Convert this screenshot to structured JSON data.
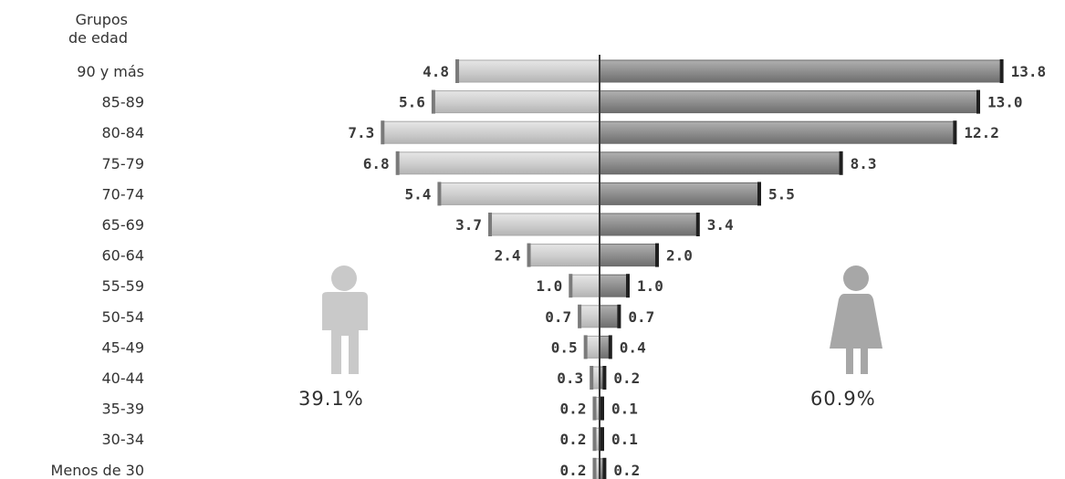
{
  "title": "",
  "axis_header": {
    "line1": "Grupos",
    "line2": "de edad"
  },
  "male_total": "39.1%",
  "female_total": "60.9%",
  "chart_data": {
    "type": "bar",
    "orientation": "horizontal-diverging",
    "title": "",
    "ylabel": "Grupos de edad",
    "xlabel": "",
    "grid": false,
    "legend": "none",
    "categories": [
      "90 y más",
      "85-89",
      "80-84",
      "75-79",
      "70-74",
      "65-69",
      "60-64",
      "55-59",
      "50-54",
      "45-49",
      "40-44",
      "35-39",
      "30-34",
      "Menos de 30"
    ],
    "series": [
      {
        "side": "left",
        "color": "#cfcfcf",
        "values": [
          4.8,
          5.6,
          7.3,
          6.8,
          5.4,
          3.7,
          2.4,
          1.0,
          0.7,
          0.5,
          0.3,
          0.2,
          0.2,
          0.2
        ],
        "labels": [
          "4.8",
          "5.6",
          "7.3",
          "6.8",
          "5.4",
          "3.7",
          "2.4",
          "1.0",
          "0.7",
          "0.5",
          "0.3",
          "0.2",
          "0.2",
          "0.2"
        ]
      },
      {
        "side": "right",
        "color": "#8e8e8e",
        "values": [
          13.8,
          13.0,
          12.2,
          8.3,
          5.5,
          3.4,
          2.0,
          1.0,
          0.7,
          0.4,
          0.2,
          0.1,
          0.1,
          0.2
        ],
        "labels": [
          "13.8",
          "13.0",
          "12.2",
          "8.3",
          "5.5",
          "3.4",
          "2.0",
          "1.0",
          "0.7",
          "0.4",
          "0.2",
          "0.1",
          "0.1",
          "0.2"
        ]
      }
    ]
  }
}
